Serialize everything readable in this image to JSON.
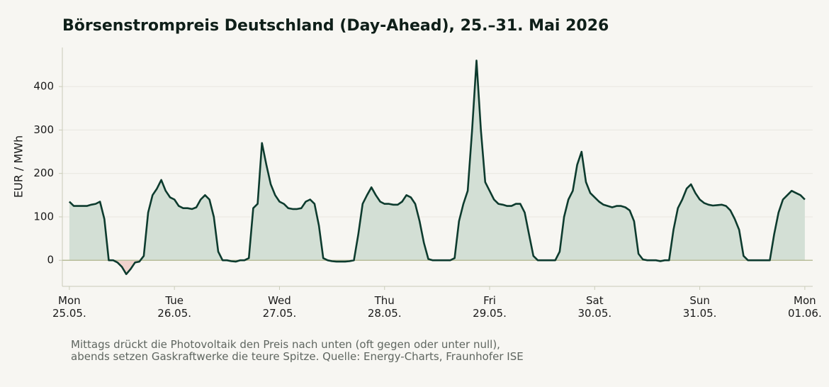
{
  "chart_data": {
    "type": "line",
    "title": "Börsenstrompreis Deutschland (Day-Ahead), 25.–31. Mai 2026",
    "y_label": "EUR / MWh",
    "note": "Mittags drückt die Photovoltaik den Preis nach unten (oft gegen oder unter null),\nabends setzen Gaskraftwerke die teure Spitze.  Quelle: Energy-Charts, Fraunhofer ISE",
    "x": [
      0,
      1,
      2,
      3,
      4,
      5,
      6,
      7,
      8,
      9,
      10,
      11,
      12,
      13,
      14,
      15,
      16,
      17,
      18,
      19,
      20,
      21,
      22,
      23,
      24,
      25,
      26,
      27,
      28,
      29,
      30,
      31,
      32,
      33,
      34,
      35,
      36,
      37,
      38,
      39,
      40,
      41,
      42,
      43,
      44,
      45,
      46,
      47,
      48,
      49,
      50,
      51,
      52,
      53,
      54,
      55,
      56,
      57,
      58,
      59,
      60,
      61,
      62,
      63,
      64,
      65,
      66,
      67,
      68,
      69,
      70,
      71,
      72,
      73,
      74,
      75,
      76,
      77,
      78,
      79,
      80,
      81,
      82,
      83,
      84,
      85,
      86,
      87,
      88,
      89,
      90,
      91,
      92,
      93,
      94,
      95,
      96,
      97,
      98,
      99,
      100,
      101,
      102,
      103,
      104,
      105,
      106,
      107,
      108,
      109,
      110,
      111,
      112,
      113,
      114,
      115,
      116,
      117,
      118,
      119,
      120,
      121,
      122,
      123,
      124,
      125,
      126,
      127,
      128,
      129,
      130,
      131,
      132,
      133,
      134,
      135,
      136,
      137,
      138,
      139,
      140,
      141,
      142,
      143,
      144,
      145,
      146,
      147,
      148,
      149,
      150,
      151,
      152,
      153,
      154,
      155,
      156,
      157,
      158,
      159,
      160,
      161,
      162,
      163,
      164,
      165,
      166,
      167,
      168
    ],
    "series": [
      {
        "color": "#0d3b2e",
        "values": [
          135,
          125,
          125,
          125,
          125,
          128,
          130,
          135,
          95,
          0,
          0,
          -5,
          -15,
          -32,
          -20,
          -5,
          -3,
          10,
          110,
          150,
          165,
          185,
          160,
          145,
          140,
          125,
          120,
          120,
          118,
          122,
          140,
          150,
          140,
          100,
          20,
          0,
          0,
          -2,
          -3,
          0,
          0,
          5,
          120,
          130,
          270,
          220,
          175,
          150,
          135,
          130,
          120,
          118,
          118,
          120,
          135,
          140,
          130,
          80,
          5,
          0,
          -2,
          -3,
          -3,
          -3,
          -2,
          0,
          60,
          130,
          150,
          168,
          150,
          135,
          130,
          130,
          128,
          128,
          135,
          150,
          145,
          130,
          90,
          40,
          3,
          0,
          0,
          0,
          0,
          0,
          5,
          90,
          130,
          160,
          300,
          460,
          300,
          180,
          160,
          140,
          130,
          128,
          125,
          125,
          130,
          130,
          110,
          60,
          10,
          0,
          0,
          0,
          0,
          0,
          20,
          100,
          140,
          160,
          220,
          250,
          180,
          155,
          145,
          135,
          128,
          125,
          122,
          125,
          125,
          122,
          115,
          90,
          15,
          2,
          0,
          0,
          0,
          -2,
          0,
          0,
          70,
          120,
          140,
          165,
          175,
          155,
          140,
          132,
          128,
          126,
          127,
          128,
          125,
          115,
          95,
          70,
          10,
          0,
          0,
          0,
          0,
          0,
          0,
          60,
          110,
          140,
          150,
          160,
          155,
          150,
          140
        ]
      }
    ],
    "xlim": [
      -1.6,
      169.8
    ],
    "ylim": [
      -60,
      490
    ],
    "xticks": [
      {
        "value": 0,
        "label": "Mon\n25.05."
      },
      {
        "value": 24,
        "label": "Tue\n26.05."
      },
      {
        "value": 48,
        "label": "Wed\n27.05."
      },
      {
        "value": 72,
        "label": "Thu\n28.05."
      },
      {
        "value": 96,
        "label": "Fri\n29.05."
      },
      {
        "value": 120,
        "label": "Sat\n30.05."
      },
      {
        "value": 144,
        "label": "Sun\n31.05."
      },
      {
        "value": 168,
        "label": "Mon\n01.06."
      }
    ],
    "yticks": [
      0,
      100,
      200,
      300,
      400
    ],
    "grid": true
  }
}
